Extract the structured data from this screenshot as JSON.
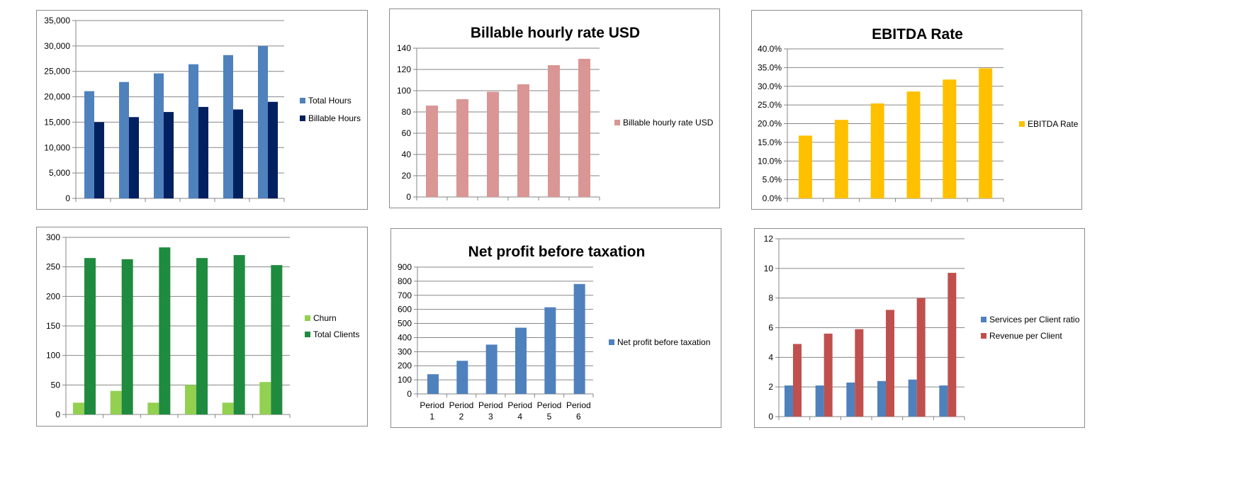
{
  "chart_data": [
    {
      "type": "bar",
      "title": "",
      "categories": [
        "",
        "",
        "",
        "",
        "",
        ""
      ],
      "series": [
        {
          "name": "Total Hours",
          "values": [
            21100,
            22900,
            24600,
            26400,
            28200,
            30000
          ],
          "color": "#4f81bd"
        },
        {
          "name": "Billable Hours",
          "values": [
            15000,
            16000,
            17000,
            18000,
            17500,
            19000
          ],
          "color": "#002060"
        }
      ],
      "ylim": [
        0,
        35000
      ],
      "yticks": [
        "0",
        "5,000",
        "10,000",
        "15,000",
        "20,000",
        "25,000",
        "30,000",
        "35,000"
      ],
      "grid": true,
      "legend": "right"
    },
    {
      "type": "bar",
      "title": "Billable hourly rate USD",
      "categories": [
        "",
        "",
        "",
        "",
        "",
        ""
      ],
      "series": [
        {
          "name": "Billable hourly rate USD",
          "values": [
            86,
            92,
            99,
            106,
            124,
            130
          ],
          "color": "#d99694"
        }
      ],
      "ylim": [
        0,
        140
      ],
      "yticks": [
        "0",
        "20",
        "40",
        "60",
        "80",
        "100",
        "120",
        "140"
      ],
      "grid": true,
      "legend": "right"
    },
    {
      "type": "bar",
      "title": "EBITDA Rate",
      "categories": [
        "",
        "",
        "",
        "",
        "",
        ""
      ],
      "series": [
        {
          "name": "EBITDA Rate",
          "values": [
            0.168,
            0.21,
            0.254,
            0.286,
            0.318,
            0.348
          ],
          "color": "#ffc000"
        }
      ],
      "ylim": [
        0,
        0.4
      ],
      "yticks": [
        "0.0%",
        "5.0%",
        "10.0%",
        "15.0%",
        "20.0%",
        "25.0%",
        "30.0%",
        "35.0%",
        "40.0%"
      ],
      "grid": true,
      "legend": "right"
    },
    {
      "type": "bar",
      "title": "",
      "categories": [
        "",
        "",
        "",
        "",
        "",
        ""
      ],
      "series": [
        {
          "name": "Churn",
          "values": [
            20,
            40,
            20,
            50,
            20,
            55
          ],
          "color": "#92d050"
        },
        {
          "name": "Total Clients",
          "values": [
            265,
            263,
            283,
            265,
            270,
            253
          ],
          "color": "#1f8b3f"
        }
      ],
      "ylim": [
        0,
        300
      ],
      "yticks": [
        "0",
        "50",
        "100",
        "150",
        "200",
        "250",
        "300"
      ],
      "grid": true,
      "legend": "right"
    },
    {
      "type": "bar",
      "title": "Net profit before taxation",
      "categories": [
        [
          "Period",
          "1"
        ],
        [
          "Period",
          "2"
        ],
        [
          "Period",
          "3"
        ],
        [
          "Period",
          "4"
        ],
        [
          "Period",
          "5"
        ],
        [
          "Period",
          "6"
        ]
      ],
      "series": [
        {
          "name": "Net profit before taxation",
          "values": [
            140,
            235,
            350,
            470,
            615,
            780
          ],
          "color": "#4f81bd"
        }
      ],
      "ylim": [
        0,
        900
      ],
      "yticks": [
        "0",
        "100",
        "200",
        "300",
        "400",
        "500",
        "600",
        "700",
        "800",
        "900"
      ],
      "grid": true,
      "legend": "right"
    },
    {
      "type": "bar",
      "title": "",
      "categories": [
        "",
        "",
        "",
        "",
        "",
        ""
      ],
      "series": [
        {
          "name": "Services per Client ratio",
          "values": [
            2.1,
            2.1,
            2.3,
            2.4,
            2.5,
            2.1
          ],
          "color": "#4f81bd"
        },
        {
          "name": "Revenue per Client",
          "values": [
            4.9,
            5.6,
            5.9,
            7.2,
            8.0,
            9.7
          ],
          "color": "#c0504d"
        }
      ],
      "ylim": [
        0,
        12
      ],
      "yticks": [
        "0",
        "2",
        "4",
        "6",
        "8",
        "10",
        "12"
      ],
      "grid": true,
      "legend": "right"
    }
  ]
}
